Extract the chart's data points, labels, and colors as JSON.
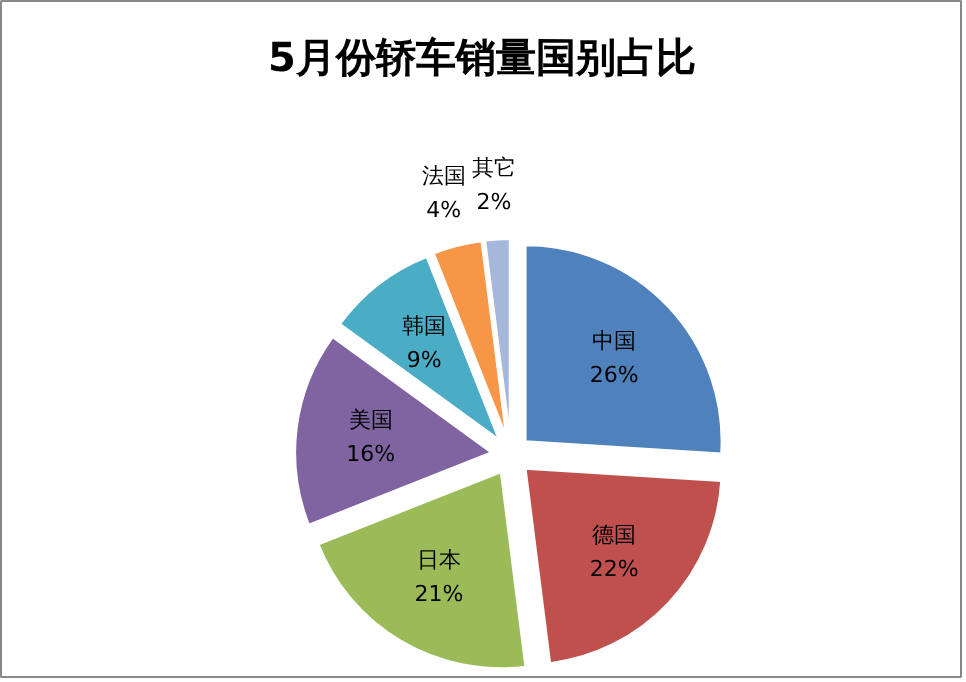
{
  "chart_data": {
    "type": "pie",
    "title": "5月份轿车销量国别占比",
    "categories": [
      "中国",
      "德国",
      "日本",
      "美国",
      "韩国",
      "法国",
      "其它"
    ],
    "values": [
      26,
      22,
      21,
      16,
      9,
      4,
      2
    ],
    "value_labels": [
      "26%",
      "22%",
      "21%",
      "16%",
      "9%",
      "4%",
      "2%"
    ],
    "colors": [
      "#4f81bd",
      "#c0504d",
      "#9bbb59",
      "#8064a2",
      "#4bacc6",
      "#f79646",
      "#a5b8dc"
    ]
  }
}
